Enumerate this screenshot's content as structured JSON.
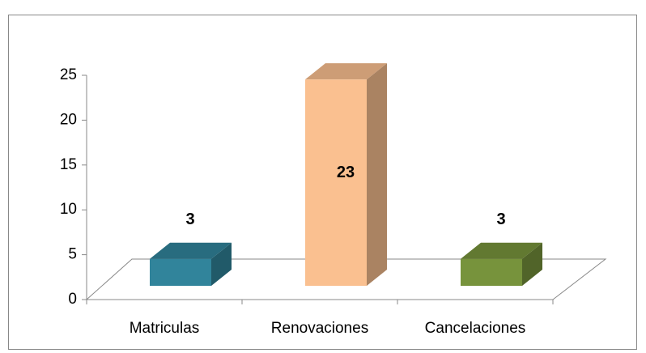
{
  "chart_data": {
    "type": "bar3d",
    "categories": [
      "Matriculas",
      "Renovaciones",
      "Cancelaciones"
    ],
    "values": [
      3,
      23,
      3
    ],
    "colors": [
      "#31849b",
      "#fac090",
      "#77933c"
    ],
    "ylim": [
      0,
      25
    ],
    "yticks": [
      0,
      5,
      10,
      15,
      20,
      25
    ]
  }
}
